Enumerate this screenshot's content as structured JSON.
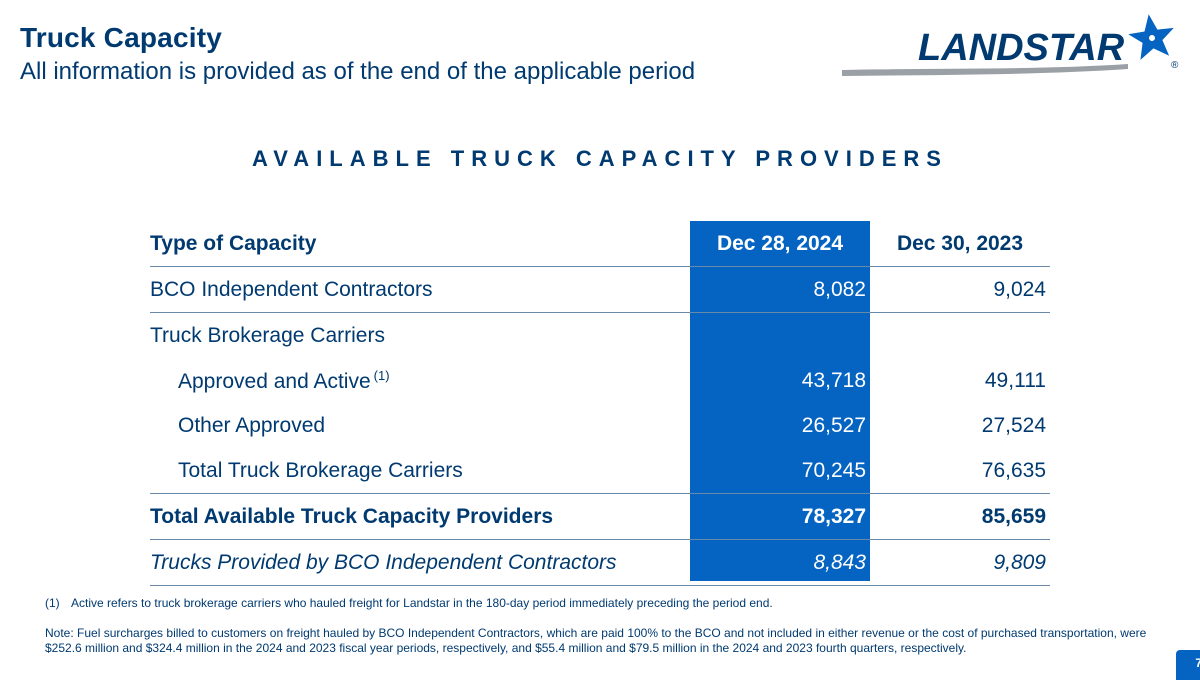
{
  "header": {
    "title": "Truck Capacity",
    "subtitle": "All information is provided as of the end of the applicable period",
    "logo_text": "LANDSTAR",
    "logo_mark": "®"
  },
  "section_heading": "AVAILABLE TRUCK CAPACITY PROVIDERS",
  "table": {
    "headers": [
      "Type of Capacity",
      "Dec 28, 2024",
      "Dec 30, 2023"
    ],
    "rows": [
      {
        "label": "BCO Independent Contractors",
        "v2024": "8,082",
        "v2023": "9,024"
      },
      {
        "label": "Truck Brokerage Carriers",
        "v2024": "",
        "v2023": ""
      },
      {
        "label": "Approved and Active",
        "sup": "(1)",
        "v2024": "43,718",
        "v2023": "49,111"
      },
      {
        "label": "Other Approved",
        "v2024": "26,527",
        "v2023": "27,524"
      },
      {
        "label": "Total Truck Brokerage Carriers",
        "v2024": "70,245",
        "v2023": "76,635"
      },
      {
        "label": "Total Available Truck Capacity Providers",
        "v2024": "78,327",
        "v2023": "85,659"
      },
      {
        "label": "Trucks Provided by BCO Independent Contractors",
        "v2024": "8,843",
        "v2023": "9,809"
      }
    ]
  },
  "footnote": {
    "marker": "(1)",
    "text": "Active refers to truck brokerage carriers who hauled freight for Landstar in the 180-day period immediately preceding the period end."
  },
  "note": "Note: Fuel surcharges billed to customers on freight hauled by BCO Independent Contractors, which are paid 100% to the BCO and not included in either revenue or the cost of purchased transportation, were $252.6 million and $324.4 million in the 2024 and 2023 fiscal year periods, respectively, and $55.4 million and $79.5 million in the 2024 and 2023 fourth quarters, respectively.",
  "page_number": "7",
  "colors": {
    "navy": "#003a70",
    "highlight_blue": "#0563c1",
    "swoosh_gray": "#9aa0a6"
  },
  "icons": {
    "logo_star": "star-icon"
  }
}
